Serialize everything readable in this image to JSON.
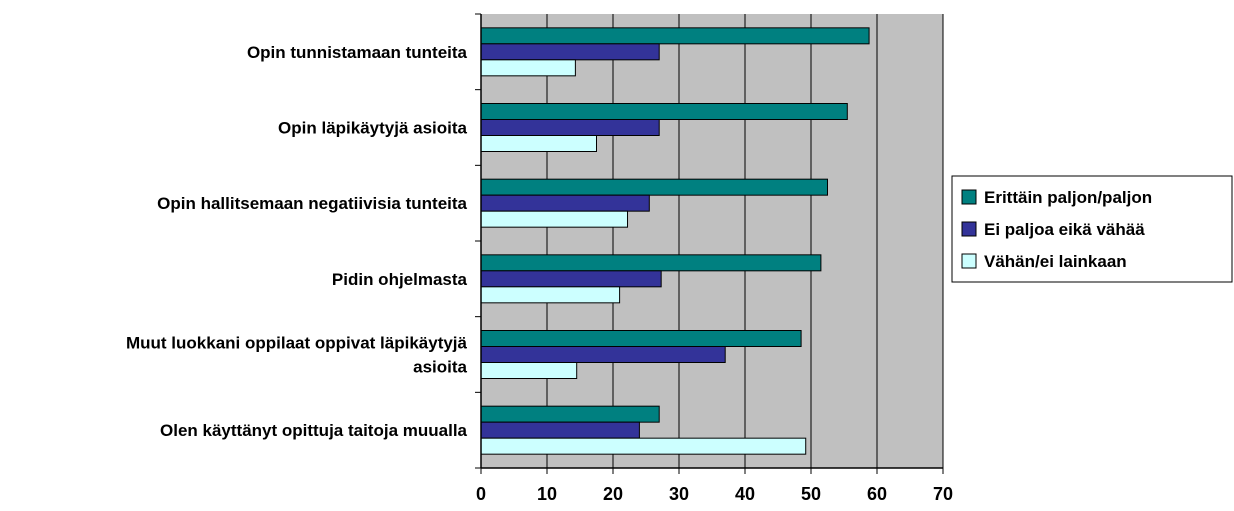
{
  "chart_data": {
    "type": "bar",
    "orientation": "horizontal",
    "categories": [
      [
        "Opin tunnistamaan tunteita"
      ],
      [
        "Opin läpikäytyjä asioita"
      ],
      [
        "Opin hallitsemaan negatiivisia tunteita"
      ],
      [
        "Pidin ohjelmasta"
      ],
      [
        "Muut luokkani oppilaat oppivat läpikäytyjä",
        "asioita"
      ],
      [
        "Olen käyttänyt opittuja taitoja muualla"
      ]
    ],
    "series": [
      {
        "name": "Erittäin paljon/paljon",
        "color": "#008080",
        "values": [
          58.8,
          55.5,
          52.5,
          51.5,
          48.5,
          27.0
        ]
      },
      {
        "name": "Ei paljoa eikä vähää",
        "color": "#333399",
        "values": [
          27.0,
          27.0,
          25.5,
          27.3,
          37.0,
          24.0
        ]
      },
      {
        "name": "Vähän/ei lainkaan",
        "color": "#ccffff",
        "values": [
          14.3,
          17.5,
          22.2,
          21.0,
          14.5,
          49.2
        ]
      }
    ],
    "xlim": [
      0,
      70
    ],
    "xticks": [
      "0",
      "10",
      "20",
      "30",
      "40",
      "50",
      "60",
      "70"
    ],
    "grid": true,
    "plot_background": "#c0c0c0",
    "legend_position": "right"
  }
}
